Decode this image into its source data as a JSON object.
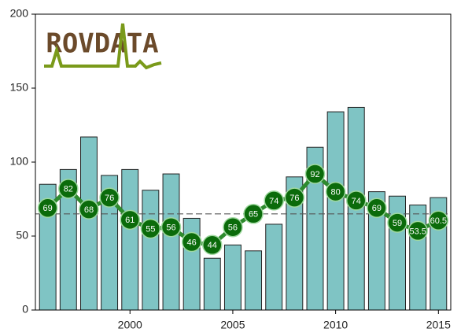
{
  "chart_data": {
    "type": "bar_line",
    "logo": "ROVDATA",
    "x": [
      1996,
      1997,
      1998,
      1999,
      2000,
      2001,
      2002,
      2003,
      2004,
      2005,
      2006,
      2007,
      2008,
      2009,
      2010,
      2011,
      2012,
      2013,
      2014,
      2015
    ],
    "series": [
      {
        "type": "bar",
        "color": "#7fc4c4",
        "values": [
          85,
          95,
          117,
          91,
          95,
          81,
          92,
          62,
          35,
          44,
          40,
          58,
          90,
          110,
          134,
          137,
          80,
          77,
          71,
          76
        ]
      },
      {
        "type": "line",
        "color": "#2e8b2e",
        "marker_color": "#0b6b0b",
        "values": [
          69,
          82,
          68,
          76,
          61,
          55,
          56,
          46,
          44,
          56,
          65,
          74,
          76,
          92,
          80,
          74,
          69,
          59,
          53.5,
          60.5
        ]
      }
    ],
    "reference_line": 65,
    "xlim": [
      1995.4,
      2015.6
    ],
    "xticks": [
      2000,
      2005,
      2010,
      2015
    ],
    "ylim": [
      0,
      200
    ],
    "yticks": [
      0,
      50,
      100,
      150,
      200
    ]
  }
}
